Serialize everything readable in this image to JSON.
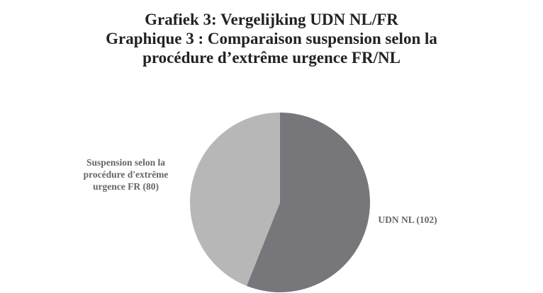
{
  "chart_data": {
    "type": "pie",
    "title": "Grafiek 3: Vergelijking UDN NL/FR",
    "subtitle": "Graphique 3 : Comparaison suspension selon la procédure d’extrême urgence FR/NL",
    "categories": [
      "UDN NL (102)",
      "Suspension selon la procédure d'extrême urgence FR (80)"
    ],
    "values": [
      102,
      80
    ],
    "colors": [
      "#77777b",
      "#b7b7b7"
    ]
  }
}
